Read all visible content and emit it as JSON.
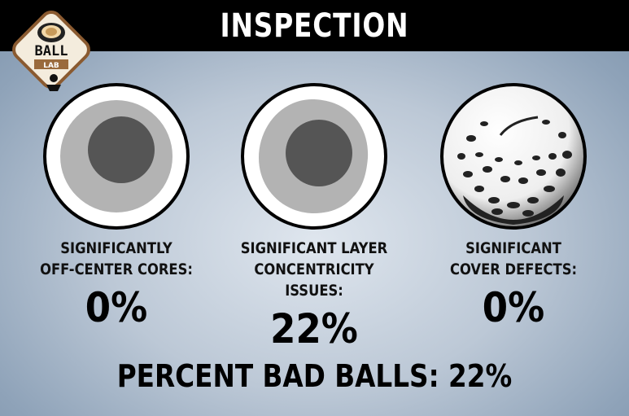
{
  "header": {
    "title": "INSPECTION"
  },
  "logo": {
    "top_text": "BALL",
    "bottom_text": "LAB",
    "icon": "golf-ball-cross-section-icon"
  },
  "metrics": [
    {
      "label_line1": "SIGNIFICANTLY",
      "label_line2": "OFF-CENTER CORES:",
      "value": "0%",
      "icon": "centered-core-cross-section-icon"
    },
    {
      "label_line1": "SIGNIFICANT LAYER",
      "label_line2": "CONCENTRICITY ISSUES:",
      "value": "22%",
      "icon": "layer-concentricity-cross-section-icon"
    },
    {
      "label_line1": "SIGNIFICANT",
      "label_line2": "COVER DEFECTS:",
      "value": "0%",
      "icon": "golf-ball-cover-icon"
    }
  ],
  "summary": {
    "text": "PERCENT BAD BALLS: 22%"
  },
  "colors": {
    "header_bg": "#000000",
    "background": "#bcc8d6",
    "core": "#555555",
    "layer": "#b3b3b3"
  }
}
